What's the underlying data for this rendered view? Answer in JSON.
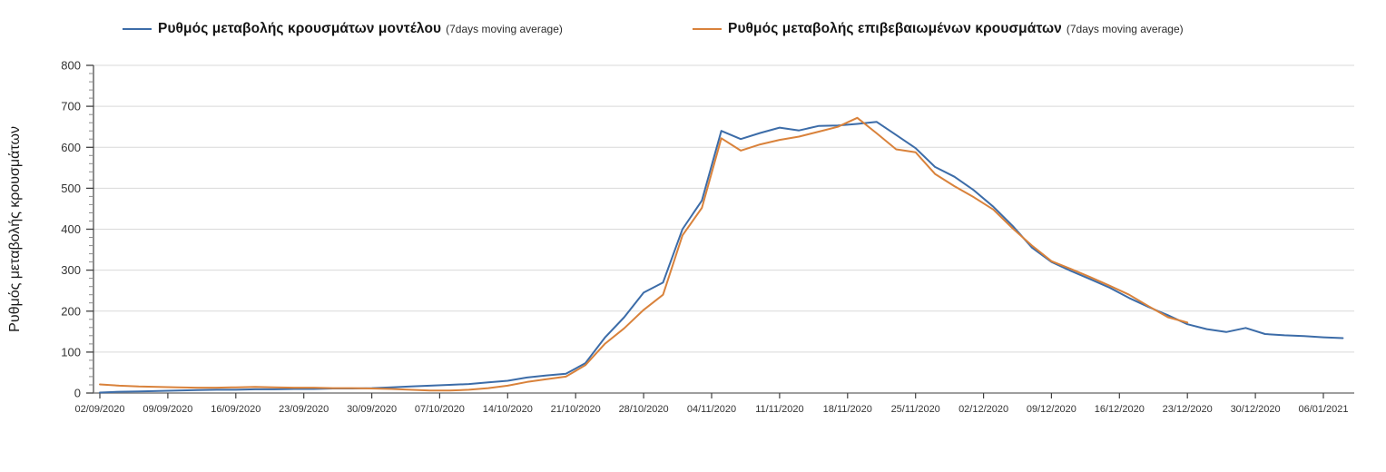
{
  "y_axis_title": "Ρυθμός μεταβολής κρουσμάτων",
  "legend": [
    {
      "label": "Ρυθμός μεταβολής κρουσμάτων μοντέλου",
      "suffix": "(7days moving average)"
    },
    {
      "label": "Ρυθμός μεταβολής επιβεβαιωμένων κρουσμάτων",
      "suffix": "(7days moving average)"
    }
  ],
  "colors": {
    "model_line": "#3c6ca8",
    "confirmed_line": "#d9823b",
    "gridline": "#d9d9d9",
    "axis": "#7f7f7f",
    "tick_label": "#333333"
  },
  "chart_data": {
    "type": "line",
    "title": "",
    "xlabel": "",
    "ylabel": "Ρυθμός μεταβολής κρουσμάτων",
    "ylim": [
      0,
      800
    ],
    "y_tick_step": 100,
    "y_minor_tick_step": 20,
    "grid": "horizontal-only",
    "legend_position": "top",
    "x_tick_labels": [
      "02/09/2020",
      "09/09/2020",
      "16/09/2020",
      "23/09/2020",
      "30/09/2020",
      "07/10/2020",
      "14/10/2020",
      "21/10/2020",
      "28/10/2020",
      "04/11/2020",
      "11/11/2020",
      "18/11/2020",
      "25/11/2020",
      "02/12/2020",
      "09/12/2020",
      "16/12/2020",
      "23/12/2020",
      "30/12/2020",
      "06/01/2021"
    ],
    "x_sampling_days": 2,
    "x": [
      "02/09",
      "04/09",
      "06/09",
      "08/09",
      "10/09",
      "12/09",
      "14/09",
      "16/09",
      "18/09",
      "20/09",
      "22/09",
      "24/09",
      "26/09",
      "28/09",
      "30/09",
      "02/10",
      "04/10",
      "06/10",
      "08/10",
      "10/10",
      "12/10",
      "14/10",
      "16/10",
      "18/10",
      "20/10",
      "22/10",
      "24/10",
      "26/10",
      "28/10",
      "30/10",
      "01/11",
      "03/11",
      "05/11",
      "07/11",
      "09/11",
      "11/11",
      "13/11",
      "15/11",
      "17/11",
      "19/11",
      "21/11",
      "23/11",
      "25/11",
      "27/11",
      "29/11",
      "01/12",
      "03/12",
      "05/12",
      "07/12",
      "09/12",
      "11/12",
      "13/12",
      "15/12",
      "17/12",
      "19/12",
      "21/12",
      "23/12",
      "25/12",
      "27/12",
      "29/12",
      "31/12",
      "02/01",
      "04/01",
      "06/01",
      "08/01"
    ],
    "series": [
      {
        "name": "Ρυθμός μεταβολής κρουσμάτων μοντέλου (7days moving average)",
        "color": "#3c6ca8",
        "values": [
          1,
          3,
          4,
          5,
          6,
          7,
          8,
          8,
          9,
          9,
          10,
          10,
          11,
          11,
          12,
          14,
          16,
          18,
          20,
          22,
          26,
          30,
          38,
          43,
          47,
          73,
          135,
          185,
          245,
          270,
          400,
          470,
          640,
          620,
          635,
          648,
          641,
          652,
          653,
          657,
          662,
          630,
          598,
          552,
          528,
          495,
          455,
          408,
          355,
          320,
          298,
          278,
          257,
          232,
          210,
          190,
          168,
          156,
          149,
          159,
          144,
          141,
          139,
          136,
          134
        ]
      },
      {
        "name": "Ρυθμός μεταβολής επιβεβαιωμένων κρουσμάτων (7days moving average)",
        "color": "#d9823b",
        "values": [
          21,
          18,
          16,
          15,
          14,
          13,
          13,
          14,
          15,
          14,
          13,
          13,
          12,
          12,
          11,
          10,
          8,
          6,
          6,
          8,
          12,
          18,
          27,
          34,
          40,
          68,
          120,
          158,
          203,
          240,
          385,
          452,
          622,
          592,
          607,
          618,
          626,
          638,
          650,
          672,
          634,
          595,
          588,
          535,
          505,
          478,
          448,
          402,
          360,
          322,
          303,
          283,
          262,
          240,
          212,
          185,
          172,
          null,
          null,
          null,
          null,
          null,
          null,
          null,
          null
        ]
      }
    ]
  }
}
